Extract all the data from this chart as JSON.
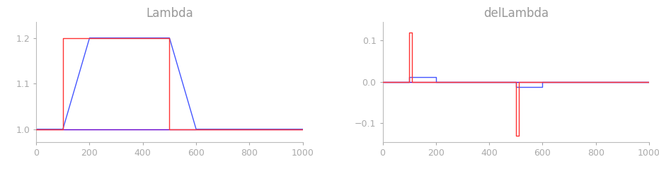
{
  "title_left": "Lambda",
  "title_right": "delLambda",
  "title_color": "#999999",
  "title_fontsize": 12,
  "bg_color": "#ffffff",
  "xlim": [
    0,
    1000
  ],
  "ylim_left": [
    0.972,
    1.235
  ],
  "ylim_right": [
    -0.145,
    0.145
  ],
  "yticks_left": [
    1.0,
    1.1,
    1.2
  ],
  "yticks_right": [
    -0.1,
    0.0,
    0.1
  ],
  "xticks_left": [
    0,
    200,
    400,
    600,
    800,
    1000
  ],
  "xticks_right": [
    0,
    200,
    400,
    600,
    800,
    1000
  ],
  "line_colors": {
    "purple": "#6600cc",
    "red": "#ff3333",
    "blue": "#4455ff"
  },
  "lambda_purple": {
    "x": [
      0,
      1000
    ],
    "y": [
      1.0,
      1.0
    ]
  },
  "lambda_red": {
    "x": [
      0,
      100,
      100,
      500,
      500,
      1000
    ],
    "y": [
      1.0,
      1.0,
      1.2,
      1.2,
      1.0,
      1.0
    ]
  },
  "lambda_blue": {
    "x": [
      0,
      100,
      200,
      500,
      600,
      1000
    ],
    "y": [
      1.0,
      1.0,
      1.2,
      1.2,
      1.0,
      1.0
    ]
  },
  "dellambda_purple": {
    "x": [
      0,
      1000
    ],
    "y": [
      0.0,
      0.0
    ]
  },
  "dellambda_red": {
    "x": [
      0,
      100,
      100,
      110,
      110,
      500,
      500,
      510,
      510,
      1000
    ],
    "y": [
      0.0,
      0.0,
      0.12,
      0.12,
      0.0,
      0.0,
      -0.13,
      -0.13,
      0.0,
      0.0
    ]
  },
  "dellambda_blue": {
    "x": [
      0,
      100,
      100,
      200,
      200,
      500,
      500,
      600,
      600,
      1000
    ],
    "y": [
      0.0,
      0.0,
      0.012,
      0.012,
      0.0,
      0.0,
      -0.012,
      -0.012,
      0.0,
      0.0
    ]
  },
  "tick_color": "#aaaaaa",
  "tick_fontsize": 9,
  "spine_color": "#bbbbbb",
  "linewidth": 1.0
}
